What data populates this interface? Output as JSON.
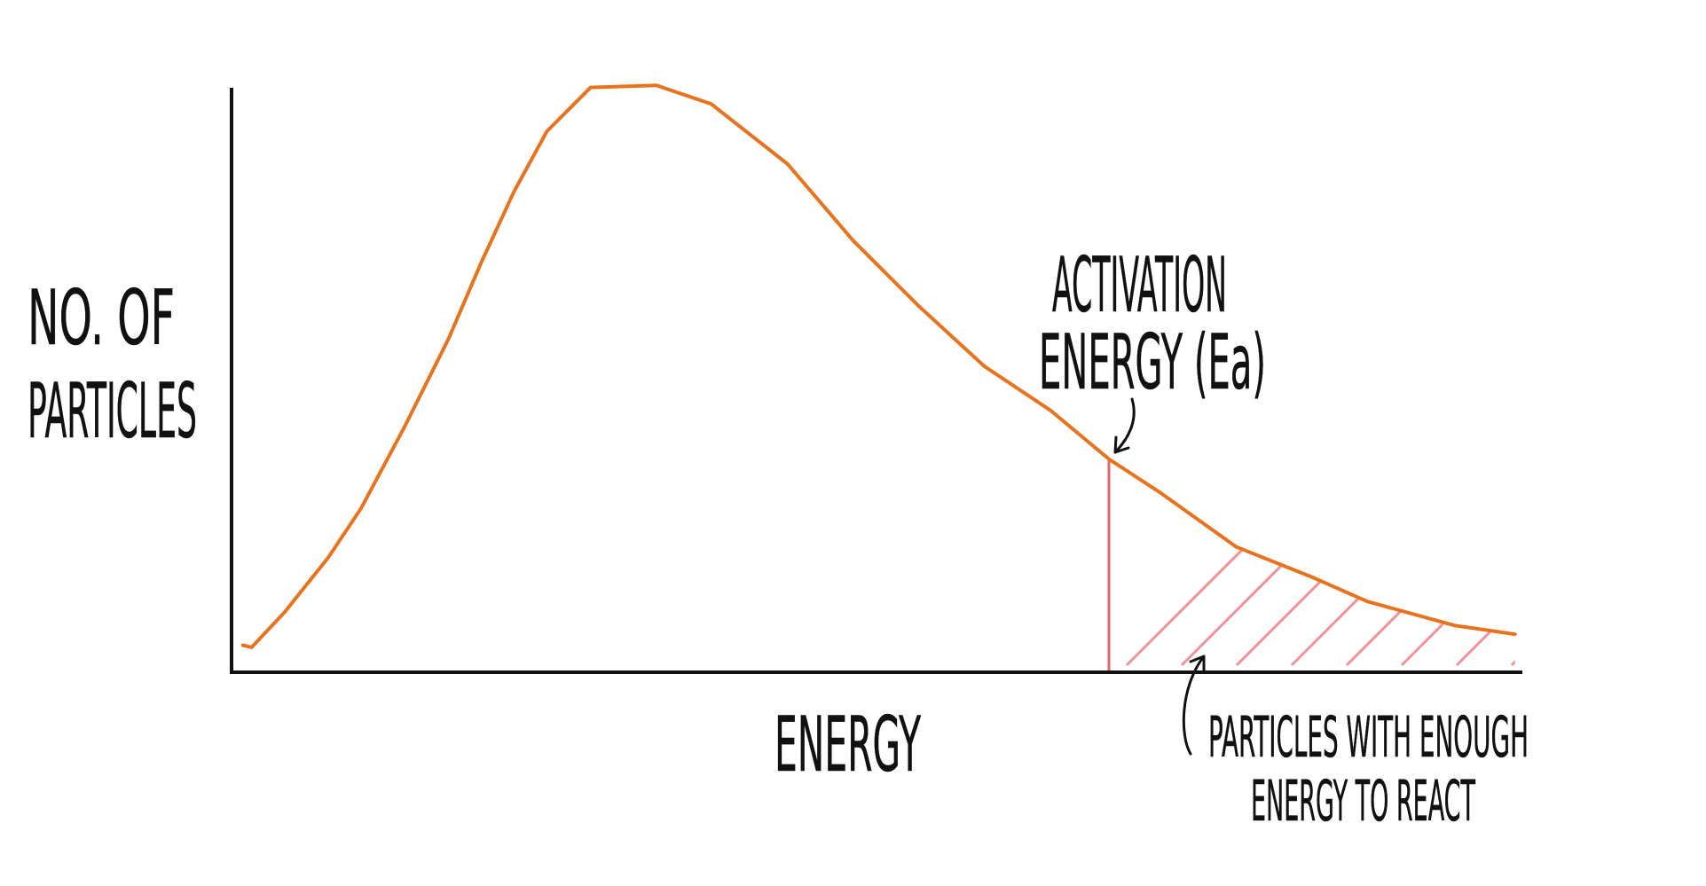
{
  "y_axis_label": [
    "NO. OF",
    "PARTICLES"
  ],
  "x_axis_label": "ENERGY",
  "activation_label": [
    "ACTIVATION",
    "ENERGY (Ea)"
  ],
  "region_label": [
    "PARTICLES WITH ENOUGH",
    "ENERGY TO REACT"
  ]
}
